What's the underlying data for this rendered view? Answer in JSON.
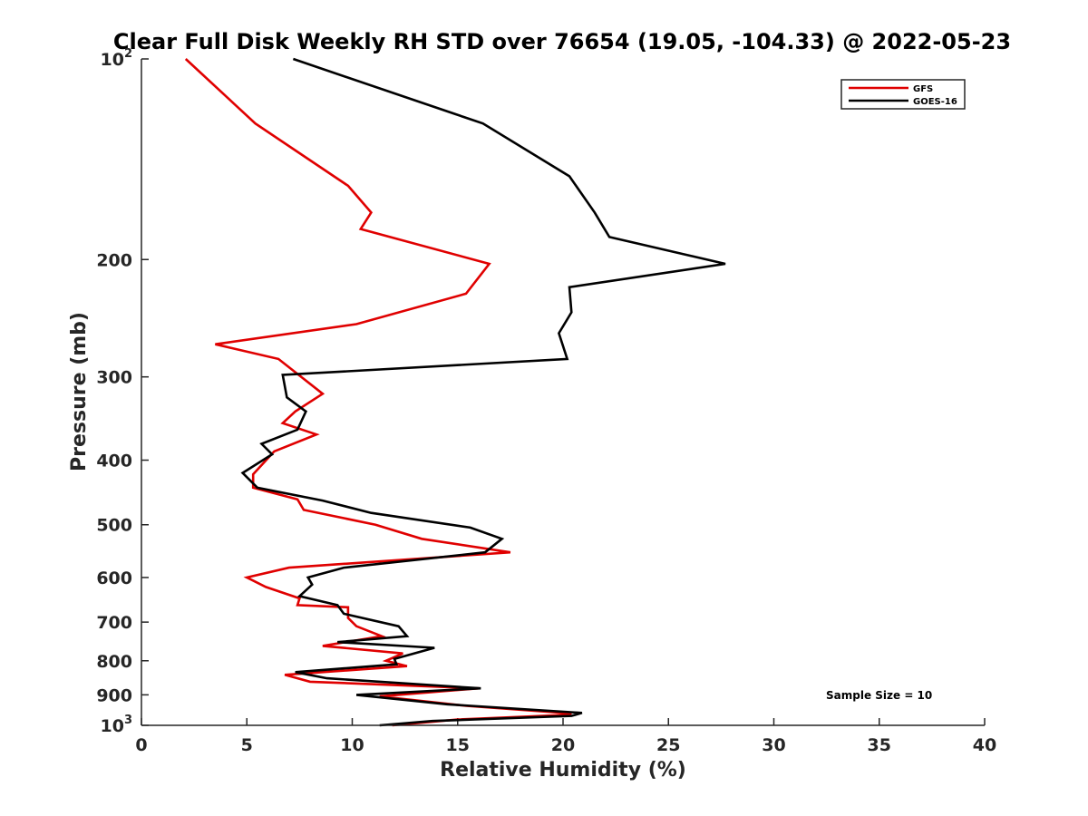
{
  "chart_data": {
    "type": "line",
    "title": "Clear Full Disk Weekly RH STD over 76654 (19.05, -104.33) @ 2022-05-23",
    "xlabel": "Relative Humidity (%)",
    "ylabel": "Pressure (mb)",
    "xlim": [
      0,
      40
    ],
    "ylim": [
      100,
      1000
    ],
    "yscale": "log",
    "y_reversed": true,
    "grid": false,
    "x_ticks": [
      0,
      5,
      10,
      15,
      20,
      25,
      30,
      35,
      40
    ],
    "x_tick_labels": [
      "0",
      "5",
      "10",
      "15",
      "20",
      "25",
      "30",
      "35",
      "40"
    ],
    "y_ticks": [
      100,
      200,
      300,
      400,
      500,
      600,
      700,
      800,
      900,
      1000
    ],
    "y_tick_labels": [
      {
        "text": "10",
        "sup": "2"
      },
      {
        "text": "200",
        "sup": ""
      },
      {
        "text": "300",
        "sup": ""
      },
      {
        "text": "400",
        "sup": ""
      },
      {
        "text": "500",
        "sup": ""
      },
      {
        "text": "600",
        "sup": ""
      },
      {
        "text": "700",
        "sup": ""
      },
      {
        "text": "800",
        "sup": ""
      },
      {
        "text": "900",
        "sup": ""
      },
      {
        "text": "10",
        "sup": "3"
      }
    ],
    "legend_position": "top-right",
    "series": [
      {
        "name": "GFS",
        "color": "#e00000",
        "x": [
          2.1,
          5.4,
          9.8,
          10.9,
          10.4,
          16.5,
          15.4,
          10.2,
          3.5,
          6.5,
          8.6,
          7.3,
          6.7,
          8.3,
          6.3,
          5.3,
          5.3,
          7.4,
          7.7,
          11.1,
          13.3,
          17.5,
          7.0,
          5.0,
          5.9,
          7.5,
          7.4,
          9.8,
          9.8,
          10.2,
          11.4,
          8.6,
          12.4,
          11.6,
          12.6,
          6.8,
          8.0,
          16.0,
          11.3,
          15.4,
          20.4,
          20.1,
          15.0,
          11.9
        ],
        "y": [
          100,
          125,
          155,
          170,
          180,
          203,
          225,
          250,
          268,
          282,
          318,
          338,
          352,
          366,
          388,
          420,
          440,
          458,
          475,
          500,
          525,
          550,
          580,
          600,
          620,
          645,
          660,
          665,
          690,
          710,
          735,
          760,
          780,
          800,
          815,
          840,
          860,
          880,
          905,
          935,
          960,
          965,
          980,
          1000
        ]
      },
      {
        "name": "GOES-16",
        "color": "#000000",
        "x": [
          7.2,
          16.2,
          20.3,
          21.5,
          22.2,
          27.7,
          20.3,
          20.4,
          19.8,
          20.2,
          6.7,
          6.9,
          7.8,
          7.4,
          5.7,
          6.2,
          4.8,
          5.5,
          8.6,
          10.9,
          15.6,
          17.1,
          16.3,
          9.6,
          7.9,
          8.1,
          7.5,
          9.3,
          9.6,
          12.2,
          12.6,
          9.3,
          13.9,
          12.0,
          12.1,
          7.3,
          8.8,
          16.1,
          10.2,
          14.5,
          20.9,
          20.4,
          13.8,
          11.3
        ],
        "y": [
          100,
          125,
          150,
          170,
          185,
          203,
          220,
          240,
          258,
          282,
          298,
          322,
          338,
          360,
          378,
          392,
          418,
          440,
          460,
          480,
          505,
          525,
          550,
          580,
          600,
          615,
          640,
          660,
          680,
          710,
          735,
          750,
          765,
          795,
          810,
          832,
          850,
          880,
          900,
          930,
          958,
          968,
          985,
          1000
        ]
      }
    ],
    "annotations": [
      "Sample Size = 10"
    ]
  }
}
